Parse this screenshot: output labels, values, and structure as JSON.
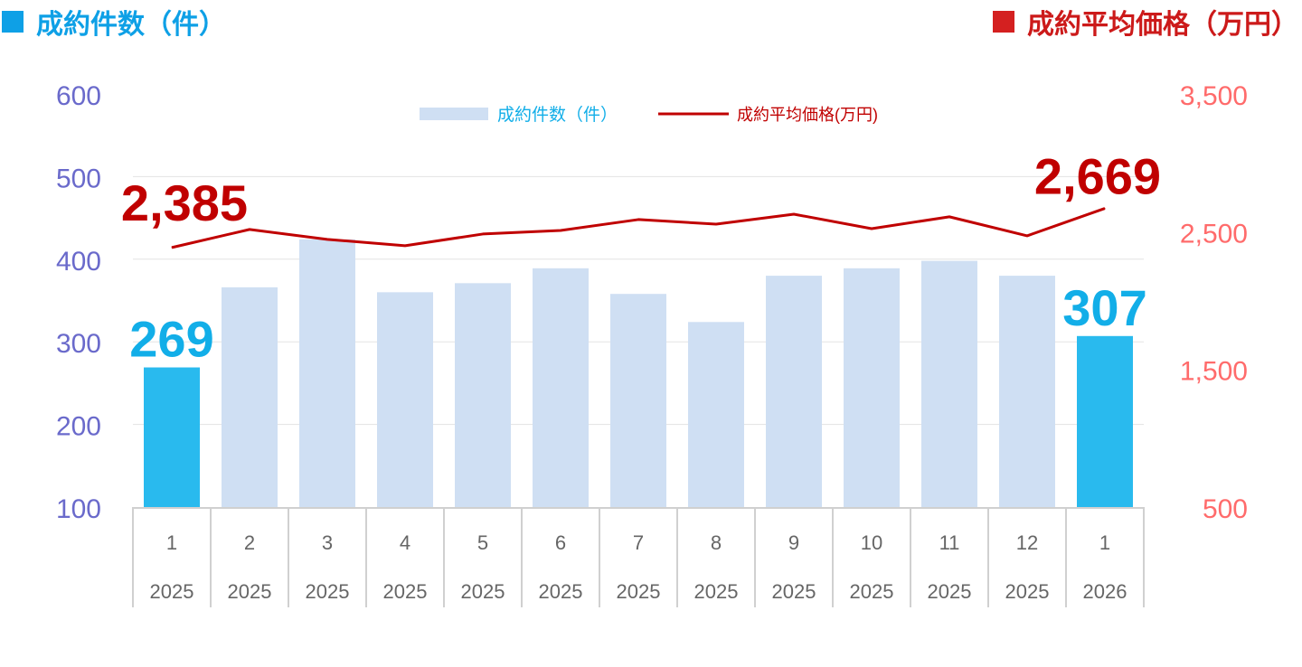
{
  "header": {
    "left_title": "成約件数（件）",
    "right_title": "成約平均価格（万円）"
  },
  "chart_data": {
    "type": "bar+line",
    "categories": [
      "1",
      "2",
      "3",
      "4",
      "5",
      "6",
      "7",
      "8",
      "9",
      "10",
      "11",
      "12",
      "1"
    ],
    "years": [
      "2025",
      "2025",
      "2025",
      "2025",
      "2025",
      "2025",
      "2025",
      "2025",
      "2025",
      "2025",
      "2025",
      "2025",
      "2026"
    ],
    "series": [
      {
        "name": "成約件数（件）",
        "type": "bar",
        "axis": "left",
        "values": [
          269,
          366,
          424,
          360,
          371,
          389,
          358,
          324,
          380,
          389,
          398,
          380,
          307
        ],
        "highlight": [
          0,
          12
        ],
        "color": "#cfdff3",
        "highlight_color": "#29baee"
      },
      {
        "name": "成約平均価格(万円)",
        "type": "line",
        "axis": "right",
        "values": [
          2385,
          2516,
          2444,
          2398,
          2483,
          2509,
          2588,
          2555,
          2627,
          2522,
          2608,
          2470,
          2669
        ],
        "color": "#c00000"
      }
    ],
    "left_axis": {
      "ylim": [
        100,
        600
      ],
      "ticks": [
        "100",
        "200",
        "300",
        "400",
        "500",
        "600"
      ],
      "color": "#6a6acb"
    },
    "right_axis": {
      "ylim": [
        500,
        3500
      ],
      "ticks": [
        "500",
        "1,500",
        "2,500",
        "3,500"
      ],
      "color": "#ff6b6b"
    },
    "data_labels": {
      "bar_first": "269",
      "bar_last": "307",
      "line_first": "2,385",
      "line_last": "2,669"
    },
    "legend": {
      "position": "top-center",
      "bar_label": "成約件数（件）",
      "line_label": "成約平均価格(万円)"
    },
    "grid": true
  }
}
